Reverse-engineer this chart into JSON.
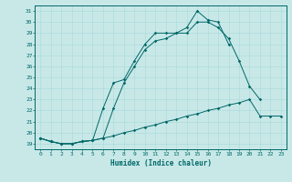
{
  "xlabel": "Humidex (Indice chaleur)",
  "bg_color": "#c8e8e8",
  "grid_color": "#a8d8d8",
  "line_color": "#006868",
  "xlim": [
    -0.5,
    23.5
  ],
  "ylim": [
    18.5,
    31.5
  ],
  "xticks": [
    0,
    1,
    2,
    3,
    4,
    5,
    6,
    7,
    8,
    9,
    10,
    11,
    12,
    13,
    14,
    15,
    16,
    17,
    18,
    19,
    20,
    21,
    22,
    23
  ],
  "yticks": [
    19,
    20,
    21,
    22,
    23,
    24,
    25,
    26,
    27,
    28,
    29,
    30,
    31
  ],
  "line1_x": [
    0,
    1,
    2,
    3,
    4,
    5,
    6,
    7,
    8,
    9,
    10,
    11,
    12,
    13,
    14,
    15,
    16,
    17,
    18,
    19,
    20,
    21,
    22,
    23
  ],
  "line1_y": [
    19.5,
    19.2,
    19.0,
    19.0,
    19.2,
    19.3,
    19.5,
    19.7,
    20.0,
    20.2,
    20.5,
    20.7,
    21.0,
    21.2,
    21.5,
    21.7,
    22.0,
    22.2,
    22.5,
    22.7,
    23.0,
    21.5,
    21.5,
    21.5
  ],
  "line2_x": [
    0,
    1,
    2,
    3,
    4,
    5,
    6,
    7,
    8,
    9,
    10,
    11,
    12,
    13,
    14,
    15,
    16,
    17,
    18,
    19,
    20,
    21,
    22,
    23
  ],
  "line2_y": [
    19.5,
    19.2,
    19.0,
    19.0,
    19.2,
    19.3,
    22.2,
    24.5,
    24.8,
    26.5,
    28.0,
    29.0,
    29.0,
    29.0,
    29.5,
    31.0,
    30.2,
    30.0,
    28.0,
    null,
    null,
    null,
    null,
    null
  ],
  "line3_x": [
    0,
    1,
    2,
    3,
    4,
    5,
    6,
    7,
    8,
    9,
    10,
    11,
    12,
    13,
    14,
    15,
    16,
    17,
    18,
    19,
    20,
    21,
    22,
    23
  ],
  "line3_y": [
    19.5,
    19.2,
    19.0,
    19.0,
    19.2,
    19.3,
    19.5,
    22.2,
    24.5,
    26.0,
    27.5,
    28.3,
    28.5,
    29.0,
    29.0,
    30.0,
    30.0,
    29.5,
    28.5,
    26.5,
    24.2,
    23.0,
    null,
    null
  ]
}
